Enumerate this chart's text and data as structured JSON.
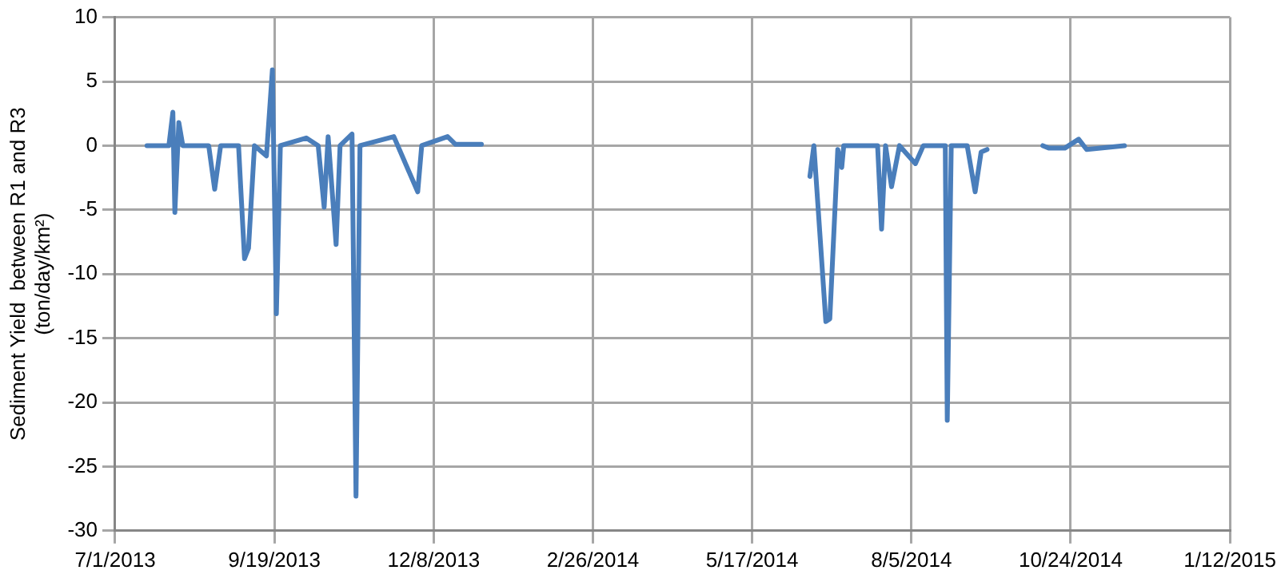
{
  "chart_data": {
    "type": "line",
    "ylabel": "Sediment Yield  between R1 and R3\n(ton/day/km²)",
    "x": [
      "2013-07-17",
      "2013-07-28",
      "2013-07-30",
      "2013-07-31",
      "2013-08-02",
      "2013-08-04",
      "2013-08-17",
      "2013-08-20",
      "2013-08-23",
      "2013-09-01",
      "2013-09-02",
      "2013-09-04",
      "2013-09-06",
      "2013-09-09",
      "2013-09-15",
      "2013-09-18",
      "2013-09-20",
      "2013-09-22",
      "2013-10-05",
      "2013-10-11",
      "2013-10-14",
      "2013-10-16",
      "2013-10-20",
      "2013-10-22",
      "2013-10-28",
      "2013-10-30",
      "2013-11-01",
      "2013-11-18",
      "2013-11-30",
      "2013-12-02",
      "2013-12-15",
      "2013-12-19",
      "2014-01-01",
      "2014-03-01",
      "2014-06-15",
      "2014-06-17",
      "2014-06-23",
      "2014-06-25",
      "2014-06-29",
      "2014-07-01",
      "2014-07-02",
      "2014-07-19",
      "2014-07-21",
      "2014-07-23",
      "2014-07-26",
      "2014-07-30",
      "2014-08-07",
      "2014-08-11",
      "2014-08-22",
      "2014-08-23",
      "2014-08-25",
      "2014-09-02",
      "2014-09-06",
      "2014-09-09",
      "2014-09-12",
      "2014-09-30",
      "2014-10-10",
      "2014-10-13",
      "2014-10-21",
      "2014-10-28",
      "2014-11-01",
      "2014-11-20"
    ],
    "series": [
      {
        "color": "#4a7ebb",
        "values": [
          0,
          0,
          2.6,
          -5.2,
          1.8,
          0,
          0,
          -3.4,
          0,
          0,
          -3,
          -8.8,
          -8,
          0,
          -0.8,
          5.9,
          -13.1,
          0,
          0.6,
          0,
          -4.8,
          0.7,
          -7.7,
          0,
          0.9,
          -27.3,
          0,
          0.7,
          -3.6,
          0,
          0.7,
          0.1,
          0.1,
          null,
          -2.4,
          0,
          -13.7,
          -13.5,
          -0.3,
          -1.7,
          0,
          0,
          -6.5,
          0,
          -3.2,
          0,
          -1.4,
          0,
          0,
          -21.4,
          0,
          0,
          -3.6,
          -0.5,
          -0.3,
          null,
          0,
          -0.2,
          -0.2,
          0.5,
          -0.3,
          0
        ]
      }
    ],
    "xlim": [
      "2013-07-01",
      "2015-01-12"
    ],
    "xticks": [
      {
        "value": "2013-07-01",
        "label": "7/1/2013"
      },
      {
        "value": "2013-09-19",
        "label": "9/19/2013"
      },
      {
        "value": "2013-12-08",
        "label": "12/8/2013"
      },
      {
        "value": "2014-02-26",
        "label": "2/26/2014"
      },
      {
        "value": "2014-05-17",
        "label": "5/17/2014"
      },
      {
        "value": "2014-08-05",
        "label": "8/5/2014"
      },
      {
        "value": "2014-10-24",
        "label": "10/24/2014"
      },
      {
        "value": "2015-01-12",
        "label": "1/12/2015"
      }
    ],
    "ylim": [
      -30,
      10
    ],
    "yticks": [
      -30,
      -25,
      -20,
      -15,
      -10,
      -5,
      0,
      5,
      10
    ],
    "grid": true,
    "legend": false,
    "marker": "none",
    "line_style": "solid"
  }
}
